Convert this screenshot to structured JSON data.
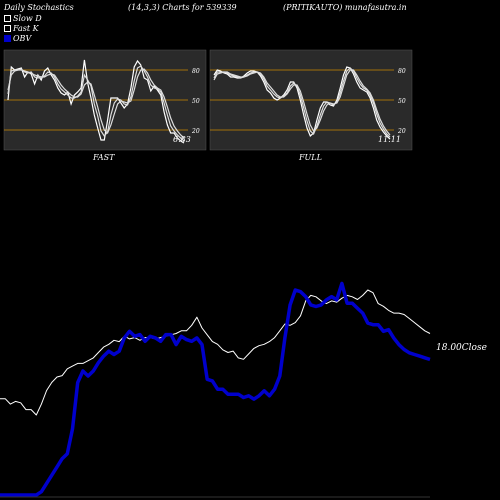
{
  "header": {
    "title": "Daily Stochastics",
    "params": "(14,3,3) Charts for 539339",
    "source": "(PRITIKAUTO) munafasutra.in"
  },
  "legend": [
    {
      "label": "Slow  D",
      "color": "#ffffff",
      "outline": true
    },
    {
      "label": "Fast K",
      "color": "#ffffff",
      "outline": true
    },
    {
      "label": "OBV",
      "color": "#0000cc",
      "outline": false
    }
  ],
  "colors": {
    "background": "#000000",
    "panel": "#2a2a2a",
    "level_line": "#cc8800",
    "price": "#ffffff",
    "obv": "#0000cc"
  },
  "chart_data": [
    {
      "type": "line",
      "panel": "FAST",
      "title": "FAST",
      "ylim": [
        0,
        100
      ],
      "levels": [
        20,
        50,
        80
      ],
      "level_labels": [
        "20",
        "50",
        "80"
      ],
      "last_value_label": "6.83",
      "series": [
        {
          "name": "Fast K",
          "values": [
            50,
            83,
            80,
            81,
            82,
            73,
            78,
            76,
            66,
            75,
            70,
            79,
            82,
            75,
            70,
            62,
            57,
            55,
            58,
            46,
            55,
            58,
            62,
            90,
            67,
            52,
            35,
            22,
            10,
            10,
            30,
            52,
            52,
            52,
            47,
            42,
            46,
            62,
            83,
            89,
            85,
            72,
            70,
            59,
            64,
            60,
            55,
            38,
            25,
            17,
            17,
            12,
            9,
            7
          ]
        },
        {
          "values": [
            56,
            79,
            80,
            80,
            81,
            78,
            77,
            78,
            73,
            72,
            73,
            74,
            78,
            77,
            73,
            66,
            61,
            58,
            55,
            52,
            52,
            54,
            58,
            75,
            70,
            64,
            46,
            34,
            19,
            14,
            18,
            35,
            47,
            51,
            50,
            46,
            45,
            53,
            69,
            82,
            84,
            79,
            73,
            65,
            62,
            61,
            58,
            47,
            35,
            24,
            19,
            15,
            12,
            9
          ]
        },
        {
          "values": [
            60,
            75,
            79,
            80,
            80,
            79,
            78,
            77,
            75,
            74,
            73,
            73,
            75,
            76,
            75,
            70,
            65,
            61,
            58,
            55,
            53,
            53,
            56,
            65,
            68,
            66,
            55,
            43,
            30,
            20,
            17,
            25,
            36,
            46,
            49,
            48,
            47,
            49,
            60,
            73,
            80,
            81,
            77,
            70,
            65,
            62,
            60,
            53,
            43,
            32,
            24,
            19,
            15,
            12
          ]
        }
      ]
    },
    {
      "type": "line",
      "panel": "FULL",
      "title": "FULL",
      "ylim": [
        0,
        100
      ],
      "levels": [
        20,
        50,
        80
      ],
      "level_labels": [
        "20",
        "50",
        "80"
      ],
      "last_value_label": "11.11",
      "series": [
        {
          "values": [
            75,
            80,
            79,
            77,
            76,
            73,
            73,
            72,
            72,
            74,
            77,
            79,
            79,
            78,
            74,
            68,
            60,
            57,
            52,
            50,
            52,
            55,
            60,
            68,
            68,
            62,
            50,
            35,
            22,
            14,
            17,
            30,
            42,
            48,
            48,
            45,
            44,
            50,
            62,
            75,
            83,
            82,
            76,
            68,
            62,
            60,
            58,
            52,
            42,
            30,
            23,
            18,
            14,
            11
          ]
        },
        {
          "values": [
            72,
            78,
            78,
            78,
            77,
            75,
            74,
            73,
            72,
            73,
            75,
            77,
            78,
            78,
            76,
            71,
            64,
            60,
            56,
            53,
            52,
            54,
            57,
            64,
            67,
            64,
            55,
            42,
            29,
            19,
            16,
            24,
            35,
            44,
            48,
            47,
            45,
            48,
            57,
            69,
            79,
            82,
            79,
            72,
            66,
            62,
            60,
            55,
            47,
            36,
            27,
            21,
            16,
            13
          ]
        },
        {
          "values": [
            70,
            76,
            77,
            78,
            78,
            76,
            75,
            74,
            73,
            73,
            74,
            76,
            77,
            78,
            77,
            73,
            67,
            63,
            59,
            55,
            53,
            53,
            56,
            61,
            65,
            65,
            59,
            48,
            36,
            25,
            19,
            22,
            30,
            39,
            45,
            47,
            46,
            47,
            53,
            64,
            75,
            80,
            80,
            75,
            69,
            64,
            61,
            57,
            50,
            40,
            31,
            24,
            19,
            15
          ]
        }
      ]
    },
    {
      "type": "line",
      "panel": "price-obv",
      "close_label": "18.00Close",
      "series": [
        {
          "name": "Close",
          "values": [
            13.2,
            13.2,
            12.8,
            13.0,
            12.9,
            12.4,
            12.4,
            12.0,
            12.8,
            13.8,
            14.4,
            14.8,
            14.9,
            15.4,
            15.6,
            15.8,
            15.8,
            16.0,
            16.2,
            16.6,
            17.0,
            17.2,
            17.5,
            17.4,
            17.8,
            17.6,
            17.7,
            17.5,
            17.7,
            17.7,
            17.6,
            17.7,
            17.8,
            17.9,
            18.0,
            18.2,
            18.2,
            18.6,
            19.2,
            18.4,
            17.9,
            17.4,
            17.2,
            16.8,
            16.6,
            16.7,
            16.2,
            16.1,
            16.5,
            16.9,
            17.1,
            17.2,
            17.4,
            17.7,
            18.2,
            18.7,
            18.6,
            18.8,
            19.3,
            20.4,
            20.8,
            20.7,
            20.4,
            20.2,
            20.4,
            20.3,
            20.6,
            20.8,
            20.7,
            20.5,
            20.8,
            21.2,
            21.0,
            20.2,
            20.0,
            19.7,
            19.5,
            19.5,
            19.4,
            19.1,
            18.8,
            18.5,
            18.2,
            18.0
          ]
        },
        {
          "name": "OBV",
          "values": [
            0.0,
            0.0,
            0.0,
            0.0,
            0.0,
            0.0,
            0.0,
            0.0,
            0.2,
            0.7,
            1.2,
            1.7,
            2.2,
            2.5,
            4.0,
            6.8,
            7.5,
            7.2,
            7.5,
            8.0,
            8.4,
            8.7,
            8.5,
            8.7,
            9.5,
            9.9,
            9.6,
            9.7,
            9.3,
            9.6,
            9.5,
            9.3,
            9.7,
            9.7,
            9.1,
            9.6,
            9.4,
            9.3,
            9.5,
            9.1,
            7.0,
            6.9,
            6.4,
            6.4,
            6.1,
            6.1,
            6.1,
            5.9,
            6.0,
            5.8,
            6.0,
            6.3,
            6.0,
            6.4,
            7.2,
            9.5,
            11.5,
            12.4,
            12.3,
            12.0,
            11.5,
            11.4,
            11.5,
            11.8,
            12.0,
            11.8,
            12.8,
            11.6,
            11.6,
            11.3,
            11.0,
            10.4,
            10.3,
            10.3,
            9.9,
            10.0,
            9.5,
            9.1,
            8.8,
            8.6,
            8.5,
            8.4,
            8.3,
            8.2
          ]
        }
      ]
    }
  ]
}
